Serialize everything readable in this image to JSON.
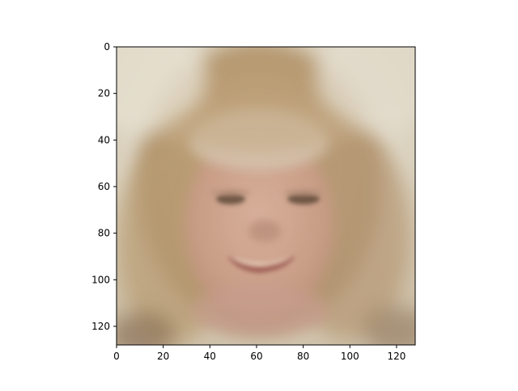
{
  "image": {
    "description_hidden": false,
    "extent_x": [
      0,
      128
    ],
    "extent_y": [
      128,
      0
    ],
    "x_ticks": [
      0,
      20,
      40,
      60,
      80,
      100,
      120
    ],
    "y_ticks": [
      0,
      20,
      40,
      60,
      80,
      100,
      120
    ]
  }
}
